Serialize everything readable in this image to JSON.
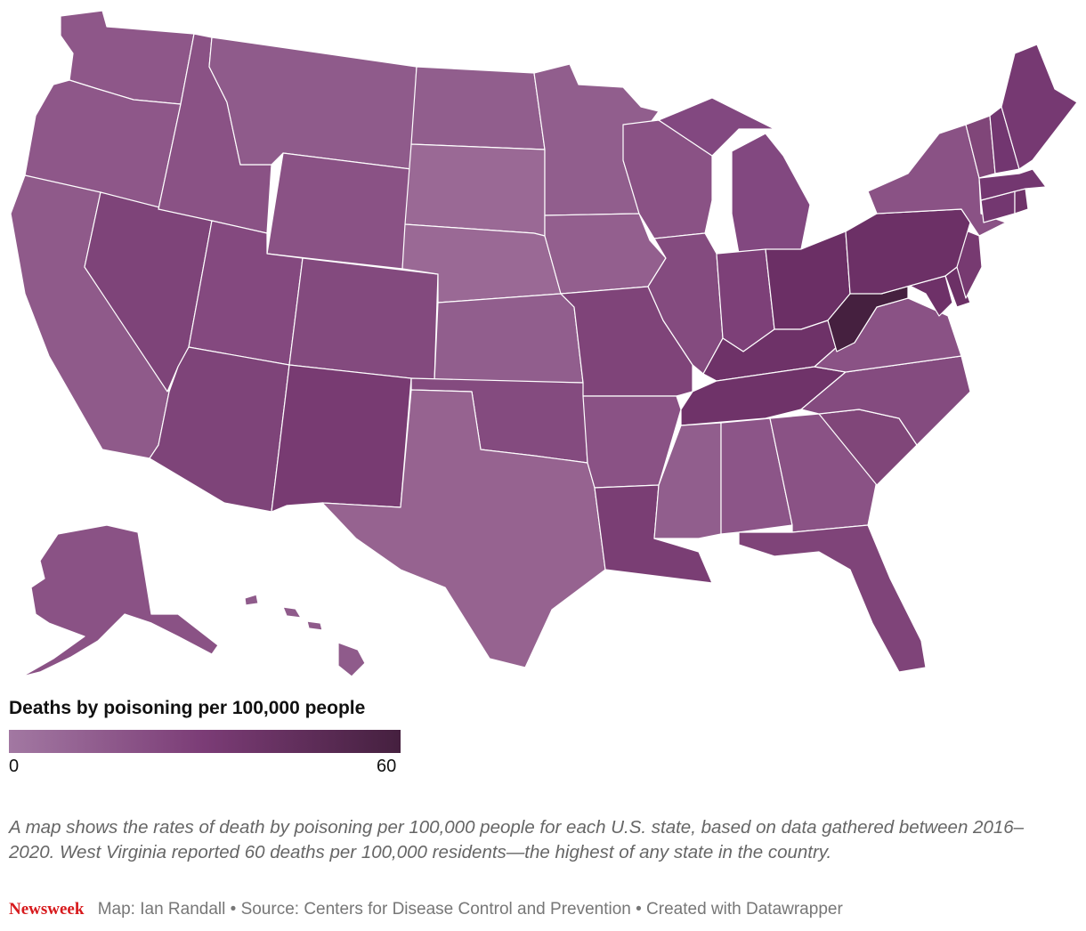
{
  "legend": {
    "title": "Deaths by poisoning per 100,000 people",
    "min_label": "0",
    "max_label": "60",
    "color_low": "#a278a2",
    "color_mid": "#7b3c76",
    "color_high": "#45203f"
  },
  "caption": "A map shows the rates of death by poisoning per 100,000 people for each U.S. state, based on data gathered between 2016–2020. West Virginia reported 60 deaths per 100,000 residents—the highest of any state in the country.",
  "footer": {
    "brand": "Newsweek",
    "credits": "Map: Ian Randall • Source: Centers for Disease Control and Prevention • Created with Datawrapper"
  },
  "state_colors": {
    "WA": "#8e5789",
    "OR": "#8e5789",
    "CA": "#8f5a8a",
    "NV": "#7e4479",
    "ID": "#8a5285",
    "MT": "#8f5b8b",
    "WY": "#8a5285",
    "UT": "#84497f",
    "AZ": "#7e4479",
    "CO": "#834a7e",
    "NM": "#783b72",
    "ND": "#915e8d",
    "SD": "#9a6995",
    "NE": "#9a6995",
    "KS": "#915e8d",
    "OK": "#844b7f",
    "TX": "#966390",
    "MN": "#915e8d",
    "IA": "#935f8e",
    "MO": "#7f4479",
    "AR": "#8a5285",
    "LA": "#7a3e74",
    "WI": "#8a5285",
    "IL": "#844b7f",
    "MI": "#824880",
    "IN": "#7d4078",
    "OH": "#6b2f65",
    "KY": "#6e3268",
    "TN": "#6f3369",
    "MS": "#915e8d",
    "AL": "#8c5588",
    "GA": "#8a5285",
    "FL": "#7f4479",
    "SC": "#804679",
    "NC": "#844b7f",
    "VA": "#8a5285",
    "WV": "#45203f",
    "MD": "#6e3168",
    "DE": "#6c3066",
    "NJ": "#773a71",
    "PA": "#6c3066",
    "NY": "#8a5285",
    "CT": "#733770",
    "RI": "#6f3369",
    "MA": "#733770",
    "VT": "#804679",
    "NH": "#723670",
    "ME": "#763972",
    "AK": "#8a5285",
    "HI": "#8f5b8b"
  }
}
